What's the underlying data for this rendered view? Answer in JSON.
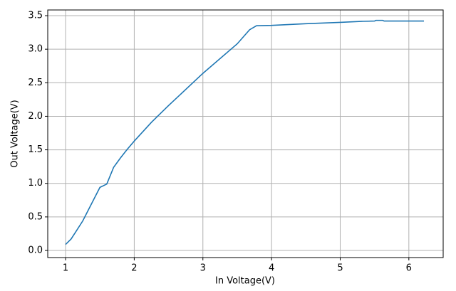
{
  "chart_data": {
    "type": "line",
    "x_label": "In Voltage(V)",
    "y_label": "Out Voltage(V)",
    "x": [
      1.0,
      1.08,
      1.15,
      1.25,
      1.35,
      1.5,
      1.6,
      1.7,
      1.8,
      1.9,
      2.0,
      2.25,
      2.5,
      3.0,
      3.5,
      3.68,
      3.78,
      4.0,
      4.5,
      5.0,
      5.3,
      5.5,
      5.52,
      5.62,
      5.64,
      6.22
    ],
    "series": [
      {
        "color": "#1f77b4",
        "values": [
          0.09,
          0.17,
          0.28,
          0.44,
          0.64,
          0.94,
          0.99,
          1.24,
          1.38,
          1.51,
          1.63,
          1.91,
          2.16,
          2.64,
          3.08,
          3.29,
          3.35,
          3.355,
          3.38,
          3.4,
          3.415,
          3.42,
          3.43,
          3.43,
          3.42,
          3.42
        ]
      }
    ],
    "xlim": [
      0.74,
      6.5
    ],
    "ylim": [
      -0.106,
      3.585
    ],
    "xticks": [
      1,
      2,
      3,
      4,
      5,
      6
    ],
    "yticks": [
      {
        "value": 0,
        "label": "0.0"
      },
      {
        "value": 0.5,
        "label": "0.5"
      },
      {
        "value": 1,
        "label": "1.0"
      },
      {
        "value": 1.5,
        "label": "1.5"
      },
      {
        "value": 2,
        "label": "2.0"
      },
      {
        "value": 2.5,
        "label": "2.5"
      },
      {
        "value": 3,
        "label": "3.0"
      },
      {
        "value": 3.5,
        "label": "3.5"
      }
    ],
    "grid": true
  }
}
